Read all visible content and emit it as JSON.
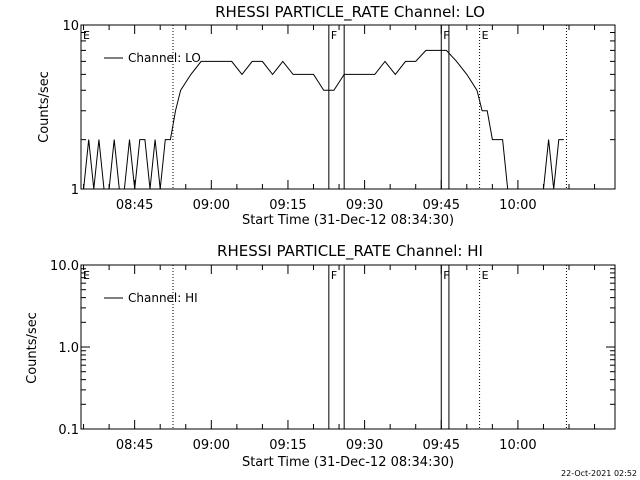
{
  "timestamp": "22-Oct-2021 02:52",
  "chart_data": [
    {
      "type": "line",
      "title": "RHESSI PARTICLE_RATE Channel: LO",
      "xlabel": "Start Time (31-Dec-12 08:34:30)",
      "ylabel": "Counts/sec",
      "yscale": "log",
      "ylim": [
        1,
        10
      ],
      "xlim": [
        "08:34:30",
        "10:19:00"
      ],
      "x_ticks": [
        "08:45",
        "09:00",
        "09:15",
        "09:30",
        "09:45",
        "10:00"
      ],
      "y_ticks": [
        "1",
        "10"
      ],
      "legend": {
        "placement": "top-left",
        "entries": [
          "Channel: LO"
        ]
      },
      "markers": [
        {
          "label": "E",
          "time": "08:34:30",
          "style": "dotted"
        },
        {
          "time": "08:52:30",
          "style": "dotted"
        },
        {
          "label": "F",
          "time": "09:23:00",
          "style": "solid"
        },
        {
          "time": "09:26:00",
          "style": "solid"
        },
        {
          "label": "F",
          "time": "09:45:00",
          "style": "solid"
        },
        {
          "time": "09:46:30",
          "style": "solid"
        },
        {
          "label": "E",
          "time": "09:52:30",
          "style": "dotted"
        },
        {
          "time": "10:09:30",
          "style": "dotted"
        }
      ],
      "series": [
        {
          "name": "Channel: LO",
          "x": [
            "08:35:00",
            "08:36:00",
            "08:37:00",
            "08:38:00",
            "08:39:00",
            "08:40:00",
            "08:41:00",
            "08:42:00",
            "08:43:00",
            "08:44:00",
            "08:45:00",
            "08:46:00",
            "08:47:00",
            "08:48:00",
            "08:49:00",
            "08:50:00",
            "08:51:00",
            "08:52:00",
            "08:53:00",
            "08:54:00",
            "08:56:00",
            "08:58:00",
            "09:00:00",
            "09:02:00",
            "09:04:00",
            "09:06:00",
            "09:08:00",
            "09:10:00",
            "09:12:00",
            "09:14:00",
            "09:16:00",
            "09:18:00",
            "09:20:00",
            "09:22:00",
            "09:24:00",
            "09:26:00",
            "09:28:00",
            "09:30:00",
            "09:32:00",
            "09:34:00",
            "09:36:00",
            "09:38:00",
            "09:40:00",
            "09:42:00",
            "09:44:00",
            "09:46:00",
            "09:48:00",
            "09:50:00",
            "09:52:00",
            "09:53:00",
            "09:54:00",
            "09:55:00",
            "09:56:00",
            "09:57:00",
            "09:58:00",
            "09:59:00",
            "10:00:00",
            "10:01:00",
            "10:02:00",
            "10:03:00",
            "10:04:00",
            "10:05:00",
            "10:06:00",
            "10:07:00",
            "10:08:00",
            "10:09:00"
          ],
          "values": [
            1,
            2,
            1,
            2,
            1,
            1,
            2,
            1,
            1,
            2,
            1,
            2,
            2,
            1,
            2,
            1,
            2,
            2,
            3,
            4,
            5,
            6,
            6,
            6,
            6,
            5,
            6,
            6,
            5,
            6,
            5,
            5,
            5,
            4,
            4,
            5,
            5,
            5,
            5,
            6,
            5,
            6,
            6,
            7,
            7,
            7,
            6,
            5,
            4,
            3,
            3,
            2,
            2,
            2,
            1,
            1,
            1,
            1,
            1,
            1,
            1,
            1,
            2,
            1,
            2,
            2
          ]
        }
      ]
    },
    {
      "type": "line",
      "title": "RHESSI PARTICLE_RATE Channel: HI",
      "xlabel": "Start Time (31-Dec-12 08:34:30)",
      "ylabel": "Counts/sec",
      "yscale": "log",
      "ylim": [
        0.1,
        10
      ],
      "xlim": [
        "08:34:30",
        "10:19:00"
      ],
      "x_ticks": [
        "08:45",
        "09:00",
        "09:15",
        "09:30",
        "09:45",
        "10:00"
      ],
      "y_ticks": [
        "0.1",
        "1.0",
        "10.0"
      ],
      "legend": {
        "placement": "top-left",
        "entries": [
          "Channel: HI"
        ]
      },
      "markers": [
        {
          "label": "E",
          "time": "08:34:30",
          "style": "dotted"
        },
        {
          "time": "08:52:30",
          "style": "dotted"
        },
        {
          "label": "F",
          "time": "09:23:00",
          "style": "solid"
        },
        {
          "time": "09:26:00",
          "style": "solid"
        },
        {
          "label": "F",
          "time": "09:45:00",
          "style": "solid"
        },
        {
          "time": "09:46:30",
          "style": "solid"
        },
        {
          "label": "E",
          "time": "09:52:30",
          "style": "dotted"
        },
        {
          "time": "10:09:30",
          "style": "dotted"
        }
      ],
      "series": [
        {
          "name": "Channel: HI",
          "x": [],
          "values": []
        }
      ]
    }
  ]
}
